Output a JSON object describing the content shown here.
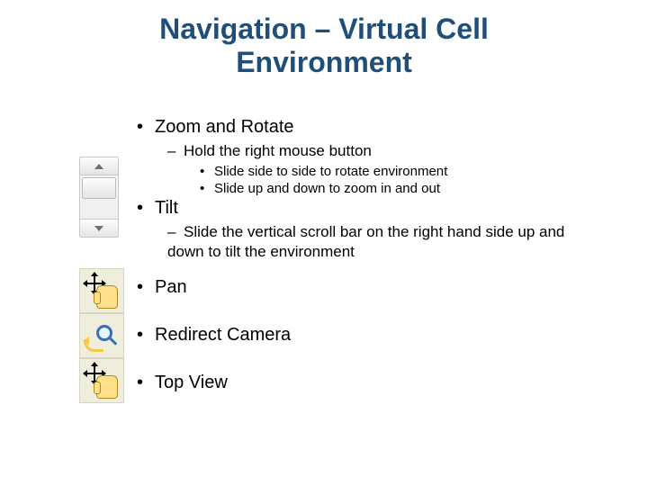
{
  "title_line1": "Navigation – Virtual Cell",
  "title_line2": "Environment",
  "colors": {
    "title": "#1f4e79",
    "body_text": "#000000",
    "icon_bg": "#efeddc",
    "hand_fill": "#ffe08a",
    "hand_stroke": "#b08a20",
    "magnifier": "#3a6fb7",
    "swoosh": "#f7c948",
    "background": "#ffffff"
  },
  "bullets": {
    "zoom_rotate": "Zoom and Rotate",
    "zoom_sub": "Hold the right mouse button",
    "zoom_detail1": "Slide side to side to rotate environment",
    "zoom_detail2": "Slide up and down to zoom in and out",
    "tilt": "Tilt",
    "tilt_sub": "Slide the vertical scroll bar on the right hand side up and down to tilt the environment",
    "pan": "Pan",
    "redirect": "Redirect Camera",
    "topview": "Top View"
  },
  "icons": {
    "scrollbar": "vertical-scrollbar",
    "pan": "pan-hand-icon",
    "redirect": "redirect-camera-icon",
    "topview": "top-view-hand-icon"
  }
}
